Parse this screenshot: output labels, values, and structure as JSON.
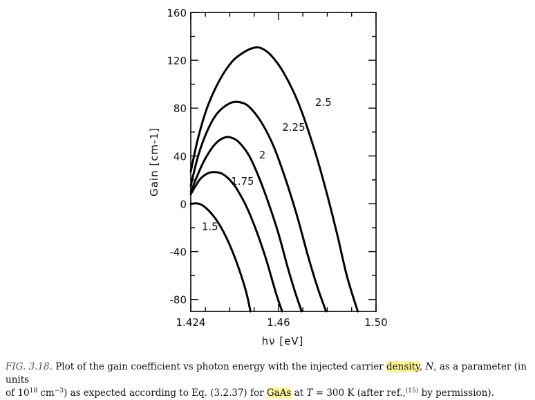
{
  "chart_data": {
    "type": "line",
    "xlabel": "hν [eV]",
    "ylabel": "Gain [cm-1]",
    "xlim": [
      1.424,
      1.5
    ],
    "ylim": [
      -90,
      160
    ],
    "x_ticks": [
      {
        "value": 1.424,
        "label": "1.424"
      },
      {
        "value": 1.46,
        "label": "1.46"
      },
      {
        "value": 1.5,
        "label": "1.50"
      }
    ],
    "y_ticks": [
      {
        "value": 160,
        "label": "160"
      },
      {
        "value": 120,
        "label": "120"
      },
      {
        "value": 80,
        "label": "80"
      },
      {
        "value": 40,
        "label": "40"
      },
      {
        "value": 0,
        "label": "0"
      },
      {
        "value": -40,
        "label": "-40"
      },
      {
        "value": -80,
        "label": "-80"
      }
    ],
    "grid": false,
    "series": [
      {
        "name": "1.5",
        "label": "1.5",
        "x": [
          1.424,
          1.4275,
          1.431,
          1.435,
          1.439,
          1.443,
          1.4465,
          1.4485
        ],
        "y": [
          0,
          0,
          -5,
          -15,
          -30,
          -50,
          -72,
          -90
        ]
      },
      {
        "name": "1.75",
        "label": "1.75",
        "x": [
          1.424,
          1.426,
          1.428,
          1.431,
          1.434,
          1.437,
          1.44,
          1.443,
          1.447,
          1.451,
          1.455,
          1.459,
          1.4615
        ],
        "y": [
          8,
          15,
          21,
          25.5,
          26.5,
          25,
          20,
          12,
          -3,
          -23,
          -47,
          -75,
          -90
        ]
      },
      {
        "name": "2",
        "label": "2",
        "x": [
          1.424,
          1.427,
          1.43,
          1.434,
          1.438,
          1.441,
          1.444,
          1.448,
          1.452,
          1.456,
          1.46,
          1.464,
          1.467,
          1.4695
        ],
        "y": [
          10,
          25,
          38,
          50,
          55.5,
          55,
          51,
          40,
          22,
          0,
          -25,
          -55,
          -75,
          -90
        ]
      },
      {
        "name": "2.25",
        "label": "2.25",
        "x": [
          1.424,
          1.427,
          1.431,
          1.435,
          1.44,
          1.444,
          1.448,
          1.453,
          1.458,
          1.463,
          1.468,
          1.472,
          1.476,
          1.4795
        ],
        "y": [
          15,
          40,
          62,
          76,
          84,
          85,
          81,
          68,
          48,
          20,
          -13,
          -43,
          -70,
          -90
        ]
      },
      {
        "name": "2.5",
        "label": "2.5",
        "x": [
          1.424,
          1.427,
          1.431,
          1.436,
          1.441,
          1.446,
          1.45,
          1.453,
          1.457,
          1.462,
          1.468,
          1.474,
          1.479,
          1.484,
          1.488,
          1.4925
        ],
        "y": [
          27,
          55,
          82,
          104,
          119,
          127,
          130.5,
          130,
          124,
          110,
          85,
          50,
          15,
          -25,
          -60,
          -90
        ]
      }
    ]
  },
  "caption": {
    "fig_label": "FIG. 3.18.",
    "text_1": " Plot of the gain coefficient vs photon energy with the injected carrier ",
    "highlight_1": "density",
    "text_2": ", ",
    "var_n": "N",
    "text_3": ", as a parameter (in units",
    "text_4": "of 10",
    "exp_18": "18",
    "text_5": " cm",
    "exp_minus3": "−3",
    "text_6": ") as expected according to Eq. (3.2.37) for ",
    "highlight_2": "GaAs",
    "text_7": " at ",
    "var_t": "T",
    "text_8": " = 300 K (after ref.,",
    "ref_15": "(15)",
    "text_9": " by permission)."
  }
}
